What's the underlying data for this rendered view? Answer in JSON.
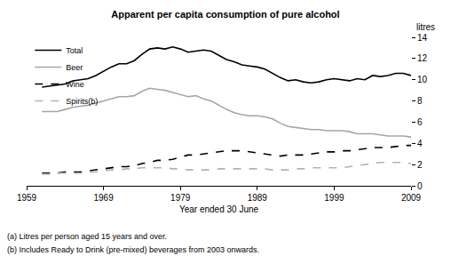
{
  "chart_data": {
    "type": "line",
    "title": "Apparent per capita consumption of pure alcohol",
    "xlabel": "Year ended 30 June",
    "ylabel": "litres",
    "notes": [
      "(a) Litres per person aged 15 years and over.",
      "(b) Includes Ready to Drink (pre-mixed) beverages from 2003 onwards."
    ],
    "x": [
      1961,
      1962,
      1963,
      1964,
      1965,
      1966,
      1967,
      1968,
      1969,
      1970,
      1971,
      1972,
      1973,
      1974,
      1975,
      1976,
      1977,
      1978,
      1979,
      1980,
      1981,
      1982,
      1983,
      1984,
      1985,
      1986,
      1987,
      1988,
      1989,
      1990,
      1991,
      1992,
      1993,
      1994,
      1995,
      1996,
      1997,
      1998,
      1999,
      2000,
      2001,
      2002,
      2003,
      2004,
      2005,
      2006,
      2007,
      2008,
      2009
    ],
    "series": [
      {
        "name": "Total",
        "color": "#000000",
        "line_style": "solid",
        "values": [
          9.3,
          9.4,
          9.5,
          9.6,
          9.9,
          10.0,
          10.1,
          10.4,
          10.8,
          11.2,
          11.5,
          11.5,
          11.8,
          12.4,
          12.9,
          13.0,
          12.9,
          13.1,
          12.9,
          12.6,
          12.7,
          12.8,
          12.7,
          12.3,
          11.9,
          11.7,
          11.4,
          11.3,
          11.2,
          11.0,
          10.6,
          10.2,
          9.9,
          10.0,
          9.8,
          9.7,
          9.8,
          10.0,
          10.1,
          10.0,
          9.9,
          10.1,
          10.0,
          10.4,
          10.3,
          10.4,
          10.6,
          10.6,
          10.4
        ]
      },
      {
        "name": "Beer",
        "color": "#a6a6a6",
        "line_style": "solid",
        "values": [
          7.0,
          7.0,
          7.0,
          7.2,
          7.4,
          7.5,
          7.6,
          7.8,
          8.0,
          8.2,
          8.4,
          8.4,
          8.5,
          8.9,
          9.2,
          9.1,
          9.0,
          8.8,
          8.6,
          8.4,
          8.5,
          8.2,
          8.0,
          7.6,
          7.2,
          6.9,
          6.7,
          6.6,
          6.6,
          6.5,
          6.3,
          5.9,
          5.6,
          5.5,
          5.4,
          5.3,
          5.3,
          5.2,
          5.2,
          5.2,
          5.1,
          4.9,
          4.9,
          4.9,
          4.8,
          4.7,
          4.7,
          4.7,
          4.6
        ]
      },
      {
        "name": "Wine",
        "color": "#000000",
        "line_style": "dashed",
        "values": [
          1.2,
          1.2,
          1.2,
          1.3,
          1.3,
          1.3,
          1.4,
          1.5,
          1.6,
          1.7,
          1.8,
          1.8,
          1.9,
          2.1,
          2.2,
          2.4,
          2.4,
          2.5,
          2.7,
          2.9,
          2.9,
          3.0,
          3.1,
          3.2,
          3.3,
          3.3,
          3.3,
          3.2,
          3.1,
          3.0,
          2.9,
          2.8,
          2.9,
          2.9,
          2.9,
          3.0,
          3.1,
          3.2,
          3.2,
          3.3,
          3.3,
          3.4,
          3.5,
          3.6,
          3.6,
          3.6,
          3.7,
          3.8,
          3.8
        ]
      },
      {
        "name": "Spirits(b)",
        "color": "#b3b3b3",
        "line_style": "dashed",
        "values": [
          1.1,
          1.1,
          1.2,
          1.2,
          1.2,
          1.2,
          1.3,
          1.3,
          1.4,
          1.5,
          1.5,
          1.6,
          1.6,
          1.7,
          1.7,
          1.7,
          1.7,
          1.6,
          1.6,
          1.5,
          1.5,
          1.5,
          1.5,
          1.6,
          1.6,
          1.6,
          1.6,
          1.6,
          1.6,
          1.6,
          1.5,
          1.5,
          1.5,
          1.6,
          1.6,
          1.7,
          1.7,
          1.7,
          1.7,
          1.7,
          1.8,
          1.9,
          2.0,
          2.1,
          2.2,
          2.2,
          2.2,
          2.2,
          2.1
        ]
      }
    ],
    "xlim": [
      1959,
      2009
    ],
    "xticks": [
      1959,
      1969,
      1979,
      1989,
      1999,
      2009
    ],
    "ylim": [
      0,
      14
    ],
    "yticks": [
      0,
      2,
      4,
      6,
      8,
      10,
      12,
      14
    ],
    "grid": false,
    "legend": "top-left"
  }
}
